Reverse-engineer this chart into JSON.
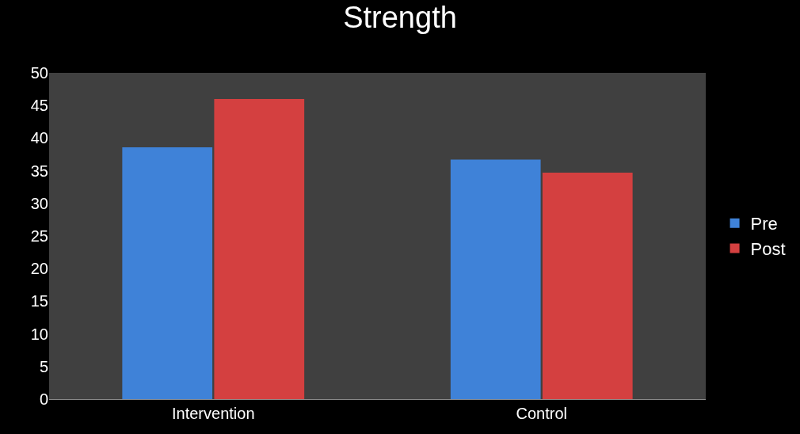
{
  "chart_data": {
    "type": "bar",
    "title": "Strength",
    "categories": [
      "Intervention",
      "Control"
    ],
    "series": [
      {
        "name": "Pre",
        "color": "#3f82d8",
        "values": [
          38.6,
          36.7
        ]
      },
      {
        "name": "Post",
        "color": "#d44040",
        "values": [
          46,
          34.7
        ]
      }
    ],
    "ylim": [
      0,
      50
    ],
    "yticks": [
      0,
      5,
      10,
      15,
      20,
      25,
      30,
      35,
      40,
      45,
      50
    ],
    "grid": false,
    "legend": "right"
  }
}
